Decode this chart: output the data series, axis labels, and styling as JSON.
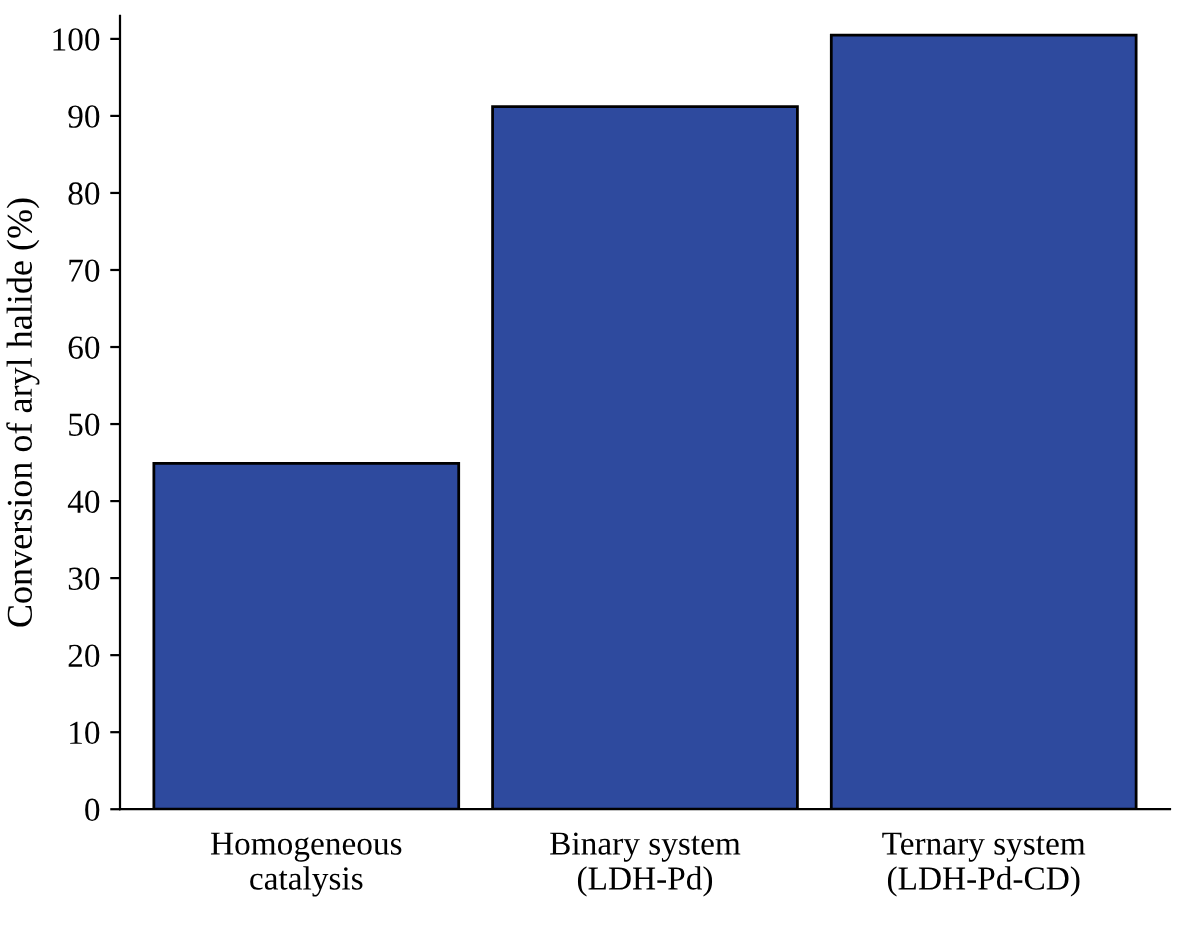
{
  "chart_data": {
    "type": "bar",
    "ylabel": "Conversion of aryl halide (%)",
    "categories": [
      "Homogeneous\ncatalysis",
      "Binary system\n(LDH-Pd)",
      "Ternary system\n(LDH-Pd-CD)"
    ],
    "values": [
      44.9,
      91.2,
      100.5
    ],
    "color": "#2e4a9e",
    "ylim": [
      0,
      103
    ],
    "yticks": [
      0,
      10,
      20,
      30,
      40,
      50,
      60,
      70,
      80,
      90,
      100
    ],
    "grid": false
  }
}
